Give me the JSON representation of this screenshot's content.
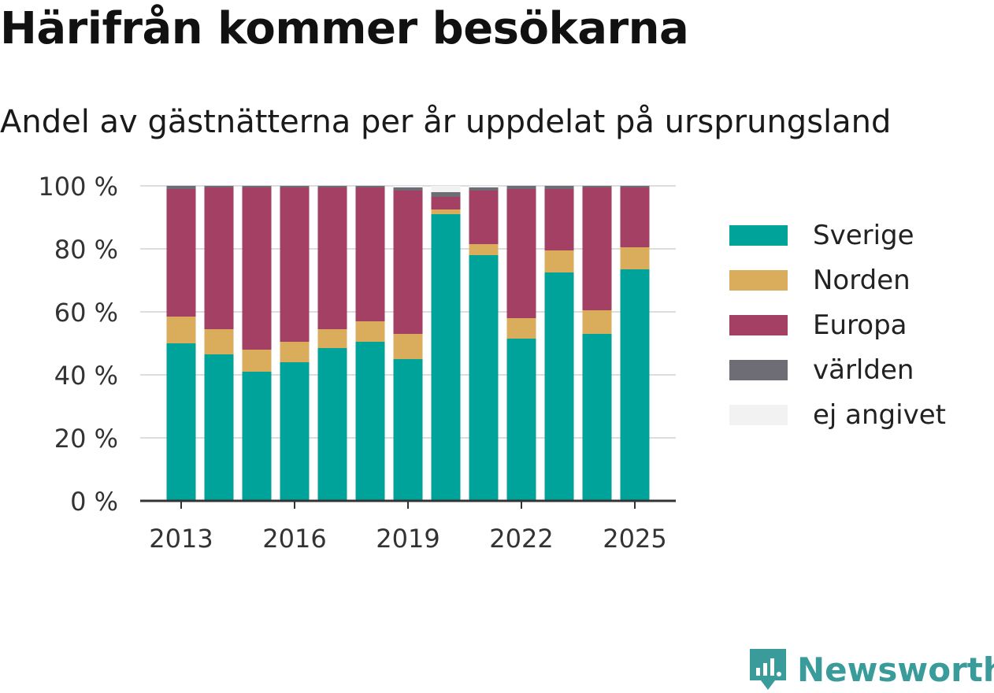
{
  "title": "Härifrån kommer besökarna",
  "subtitle": "Andel av gästnätterna per år uppdelat på ursprungsland",
  "chart_data": {
    "type": "bar",
    "stacked": true,
    "categories": [
      "2013",
      "2014",
      "2015",
      "2016",
      "2017",
      "2018",
      "2019",
      "2020",
      "2021",
      "2022",
      "2023",
      "2024",
      "2025"
    ],
    "x_tick_labels": [
      "2013",
      "2016",
      "2019",
      "2022",
      "2025"
    ],
    "y_tick_labels": [
      "0 %",
      "20 %",
      "40 %",
      "60 %",
      "80 %",
      "100 %"
    ],
    "ylim": [
      0,
      100
    ],
    "grid": true,
    "legend_position": "right",
    "series": [
      {
        "name": "Sverige",
        "color": "#00a39a",
        "values": [
          50,
          46.5,
          41,
          44,
          48.5,
          50.5,
          45,
          91,
          78,
          51.5,
          72.5,
          53,
          73.5
        ]
      },
      {
        "name": "Norden",
        "color": "#d9ad5b",
        "values": [
          8.5,
          8,
          7,
          6.5,
          6,
          6.5,
          8,
          1.5,
          3.5,
          6.5,
          7,
          7.5,
          7
        ]
      },
      {
        "name": "Europa",
        "color": "#a44064",
        "values": [
          40.5,
          45,
          51.5,
          49,
          45,
          42.5,
          45.5,
          4,
          17,
          41,
          19.5,
          39,
          19
        ]
      },
      {
        "name": "världen",
        "color": "#6e6d76",
        "values": [
          1,
          0.5,
          0.5,
          0.5,
          0.5,
          0.5,
          1,
          1.5,
          1,
          1,
          1,
          0.5,
          0.5
        ]
      },
      {
        "name": "ej angivet",
        "color": "#f2f2f2",
        "values": [
          0,
          0,
          0,
          0,
          0,
          0,
          0.5,
          2,
          0.5,
          0,
          0,
          0,
          0
        ]
      }
    ]
  },
  "brand": {
    "name": "Newsworthy",
    "color": "#3a9b9b"
  }
}
